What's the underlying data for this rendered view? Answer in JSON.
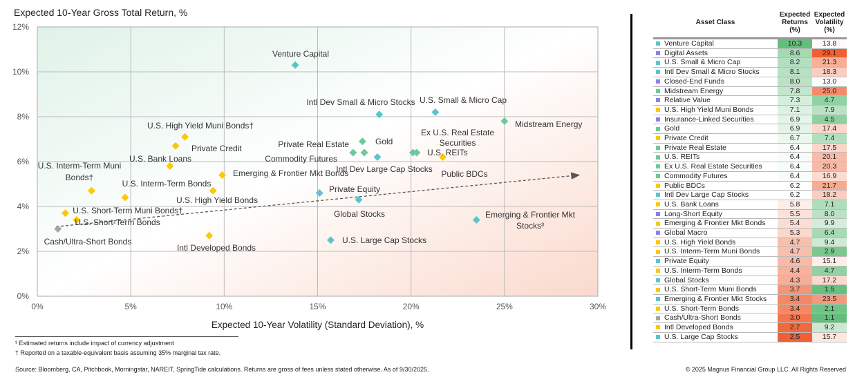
{
  "chart_data": {
    "type": "scatter",
    "ylabel": "Expected 10-Year Gross Total Return, %",
    "xlabel": "Expected 10-Year Volatility (Standard Deviation), %",
    "xlim": [
      0,
      30
    ],
    "ylim": [
      0,
      12
    ],
    "xticks": [
      "0%",
      "5%",
      "10%",
      "15%",
      "20%",
      "25%",
      "30%"
    ],
    "yticks": [
      "0%",
      "2%",
      "4%",
      "6%",
      "8%",
      "10%",
      "12%"
    ],
    "grid": true,
    "trend_line": {
      "from": [
        1,
        3.1
      ],
      "to": [
        29,
        5.4
      ],
      "style": "dashed-arrow"
    },
    "category_colors": {
      "equity": "#5bc5cc",
      "real": "#6cc99a",
      "fixed": "#ffc800",
      "alt": "#8b82ea",
      "cash": "#a6a6a6"
    },
    "points": [
      {
        "label": "Venture Capital",
        "x": 13.8,
        "y": 10.3,
        "cat": "equity"
      },
      {
        "label": "U.S. Small & Micro Cap",
        "x": 21.3,
        "y": 8.2,
        "cat": "equity"
      },
      {
        "label": "Intl Dev Small & Micro Stocks",
        "x": 18.3,
        "y": 8.1,
        "cat": "equity"
      },
      {
        "label": "Midstream Energy",
        "x": 25.0,
        "y": 7.8,
        "cat": "real"
      },
      {
        "label": "U.S. High Yield Muni Bonds†",
        "x": 7.9,
        "y": 7.1,
        "cat": "fixed"
      },
      {
        "label": "Gold",
        "x": 17.4,
        "y": 6.9,
        "cat": "real"
      },
      {
        "label": "Private Credit",
        "x": 7.4,
        "y": 6.7,
        "cat": "fixed"
      },
      {
        "label": "Private Real Estate",
        "x": 17.5,
        "y": 6.4,
        "cat": "real"
      },
      {
        "label": "U.S. REITs",
        "x": 20.1,
        "y": 6.4,
        "cat": "real"
      },
      {
        "label": "Ex U.S. Real Estate Securities",
        "x": 20.3,
        "y": 6.4,
        "cat": "real"
      },
      {
        "label": "Commodity Futures",
        "x": 16.9,
        "y": 6.4,
        "cat": "real"
      },
      {
        "label": "Public BDCs",
        "x": 21.7,
        "y": 6.2,
        "cat": "fixed"
      },
      {
        "label": "Intl Dev Large Cap Stocks",
        "x": 18.2,
        "y": 6.2,
        "cat": "equity"
      },
      {
        "label": "U.S. Bank Loans",
        "x": 7.1,
        "y": 5.8,
        "cat": "fixed"
      },
      {
        "label": "Emerging & Frontier Mkt Bonds",
        "x": 9.9,
        "y": 5.4,
        "cat": "fixed"
      },
      {
        "label": "U.S. High Yield Bonds",
        "x": 9.4,
        "y": 4.7,
        "cat": "fixed"
      },
      {
        "label": "U.S. Interm-Term Muni Bonds†",
        "x": 2.9,
        "y": 4.7,
        "cat": "fixed"
      },
      {
        "label": "Private Equity",
        "x": 15.1,
        "y": 4.6,
        "cat": "equity"
      },
      {
        "label": "U.S. Interm-Term Bonds",
        "x": 4.7,
        "y": 4.4,
        "cat": "fixed"
      },
      {
        "label": "Global Stocks",
        "x": 17.2,
        "y": 4.3,
        "cat": "equity"
      },
      {
        "label": "U.S. Short-Term Muni Bonds†",
        "x": 1.5,
        "y": 3.7,
        "cat": "fixed"
      },
      {
        "label": "Emerging & Frontier Mkt Stocks³",
        "x": 23.5,
        "y": 3.4,
        "cat": "equity"
      },
      {
        "label": "U.S. Short-Term Bonds",
        "x": 2.1,
        "y": 3.4,
        "cat": "fixed"
      },
      {
        "label": "Cash/Ultra-Short Bonds",
        "x": 1.1,
        "y": 3.0,
        "cat": "cash"
      },
      {
        "label": "Intl Developed Bonds",
        "x": 9.2,
        "y": 2.7,
        "cat": "fixed"
      },
      {
        "label": "U.S. Large Cap Stocks",
        "x": 15.7,
        "y": 2.5,
        "cat": "equity"
      }
    ]
  },
  "table": {
    "headers": [
      "Asset Class",
      "Expected Returns (%)",
      "Expected Volatility (%)"
    ],
    "rows": [
      [
        "Venture Capital",
        "10.3",
        "13.8",
        "equity"
      ],
      [
        "Digital Assets",
        "8.6",
        "29.1",
        "alt"
      ],
      [
        "U.S. Small & Micro Cap",
        "8.2",
        "21.3",
        "equity"
      ],
      [
        "Intl Dev Small & Micro Stocks",
        "8.1",
        "18.3",
        "equity"
      ],
      [
        "Closed-End Funds",
        "8.0",
        "13.0",
        "alt"
      ],
      [
        "Midstream Energy",
        "7.8",
        "25.0",
        "real"
      ],
      [
        "Relative Value",
        "7.3",
        "4.7",
        "alt"
      ],
      [
        "U.S. High Yield Muni Bonds",
        "7.1",
        "7.9",
        "fixed"
      ],
      [
        "Insurance-Linked Securities",
        "6.9",
        "4.5",
        "alt"
      ],
      [
        "Gold",
        "6.9",
        "17.4",
        "real"
      ],
      [
        "Private Credit",
        "6.7",
        "7.4",
        "fixed"
      ],
      [
        "Private Real Estate",
        "6.4",
        "17.5",
        "real"
      ],
      [
        "U.S. REITs",
        "6.4",
        "20.1",
        "real"
      ],
      [
        "Ex U.S. Real Estate Securities",
        "6.4",
        "20.3",
        "real"
      ],
      [
        "Commodity Futures",
        "6.4",
        "16.9",
        "real"
      ],
      [
        "Public BDCs",
        "6.2",
        "21.7",
        "fixed"
      ],
      [
        "Intl Dev Large Cap Stocks",
        "6.2",
        "18.2",
        "equity"
      ],
      [
        "U.S. Bank Loans",
        "5.8",
        "7.1",
        "fixed"
      ],
      [
        "Long-Short Equity",
        "5.5",
        "8.0",
        "alt"
      ],
      [
        "Emerging & Frontier Mkt Bonds",
        "5.4",
        "9.9",
        "fixed"
      ],
      [
        "Global Macro",
        "5.3",
        "6.4",
        "alt"
      ],
      [
        "U.S. High Yield Bonds",
        "4.7",
        "9.4",
        "fixed"
      ],
      [
        "U.S. Interm-Term Muni Bonds",
        "4.7",
        "2.9",
        "fixed"
      ],
      [
        "Private Equity",
        "4.6",
        "15.1",
        "equity"
      ],
      [
        "U.S. Interm-Term Bonds",
        "4.4",
        "4.7",
        "fixed"
      ],
      [
        "Global Stocks",
        "4.3",
        "17.2",
        "equity"
      ],
      [
        "U.S. Short-Term Muni Bonds",
        "3.7",
        "1.5",
        "fixed"
      ],
      [
        "Emerging & Frontier Mkt Stocks",
        "3.4",
        "23.5",
        "equity"
      ],
      [
        "U.S. Short-Term Bonds",
        "3.4",
        "2.1",
        "fixed"
      ],
      [
        "Cash/Ultra-Short Bonds",
        "3.0",
        "1.1",
        "cash"
      ],
      [
        "Intl Developed Bonds",
        "2.7",
        "9.2",
        "fixed"
      ],
      [
        "U.S. Large Cap Stocks",
        "2.5",
        "15.7",
        "equity"
      ]
    ]
  },
  "footnotes": {
    "f1": "³ Estimated returns include impact of currency adjustment",
    "f2": "† Reported on a taxable-equivalent basis assuming 35% marginal tax rate.",
    "source": "Source: Bloomberg, CA, Pitchbook, Morningstar, NAREIT, SpringTide calculations. Returns are gross of fees unless stated otherwise. As of 9/30/2025.",
    "copyright": "© 2025 Magnus Financial Group LLC. All Rights Reserved"
  }
}
